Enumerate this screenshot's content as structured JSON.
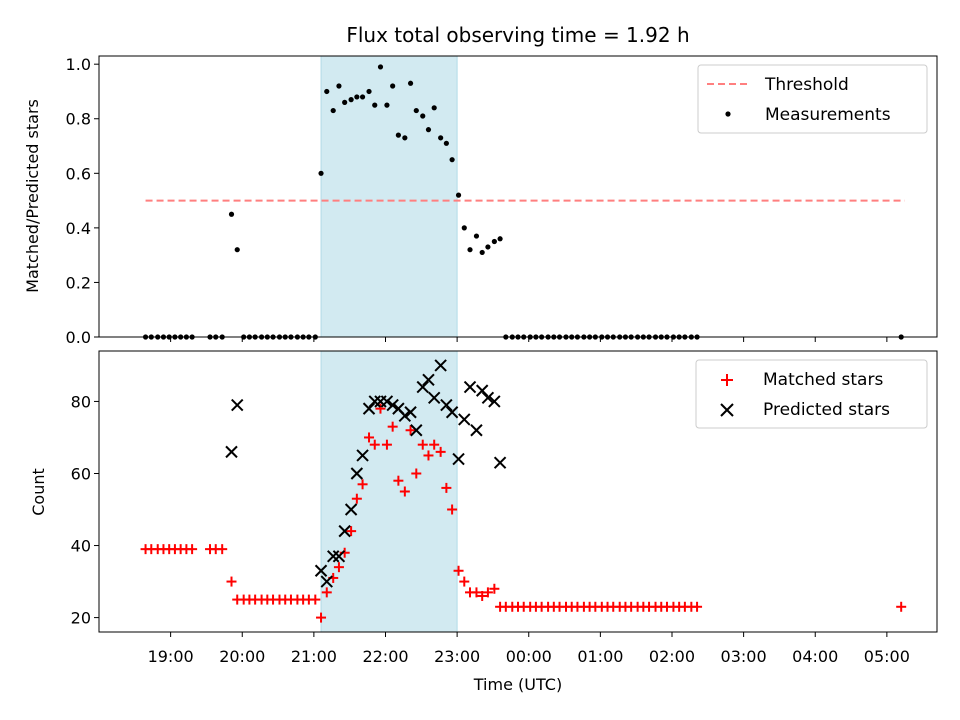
{
  "chart_data": [
    {
      "type": "scatter",
      "title": "Flux total observing time = 1.92 h",
      "ylabel": "Matched/Predicted stars",
      "ylim": [
        0,
        1.03
      ],
      "yticks": [
        "0.0",
        "0.2",
        "0.4",
        "0.6",
        "0.8",
        "1.0"
      ],
      "shaded_span": {
        "start": 21.1,
        "end": 23.0,
        "color": "#add8e6"
      },
      "threshold": {
        "name": "Threshold",
        "value": 0.5,
        "x_start": 18.65,
        "x_end": 29.25,
        "color": "#ff7f7f"
      },
      "series": [
        {
          "name": "Measurements",
          "color": "#000000",
          "x": [
            18.65,
            18.73,
            18.82,
            18.9,
            18.98,
            19.06,
            19.14,
            19.22,
            19.3,
            19.55,
            19.63,
            19.72,
            19.85,
            19.93,
            20.02,
            20.1,
            20.18,
            20.27,
            20.35,
            20.43,
            20.52,
            20.6,
            20.68,
            20.77,
            20.85,
            20.93,
            21.02,
            21.1,
            21.18,
            21.27,
            21.35,
            21.43,
            21.52,
            21.6,
            21.68,
            21.77,
            21.85,
            21.93,
            22.02,
            22.1,
            22.18,
            22.27,
            22.35,
            22.43,
            22.52,
            22.6,
            22.68,
            22.77,
            22.85,
            22.93,
            23.02,
            23.1,
            23.18,
            23.27,
            23.35,
            23.43,
            23.52,
            23.6,
            23.68,
            23.77,
            23.85,
            23.93,
            24.02,
            24.1,
            24.18,
            24.27,
            24.35,
            24.43,
            24.52,
            24.6,
            24.68,
            24.77,
            24.85,
            24.93,
            25.02,
            25.1,
            25.18,
            25.27,
            25.35,
            25.43,
            25.52,
            25.6,
            25.68,
            25.77,
            25.85,
            25.93,
            26.02,
            26.1,
            26.18,
            26.27,
            26.35,
            29.2
          ],
          "y": [
            0,
            0,
            0,
            0,
            0,
            0,
            0,
            0,
            0,
            0,
            0,
            0,
            0.45,
            0.32,
            0,
            0,
            0,
            0,
            0,
            0,
            0,
            0,
            0,
            0,
            0,
            0,
            0,
            0.6,
            0.9,
            0.83,
            0.92,
            0.86,
            0.87,
            0.88,
            0.88,
            0.9,
            0.85,
            0.99,
            0.85,
            0.92,
            0.74,
            0.73,
            0.93,
            0.83,
            0.81,
            0.76,
            0.84,
            0.73,
            0.71,
            0.65,
            0.52,
            0.4,
            0.32,
            0.37,
            0.31,
            0.33,
            0.35,
            0.36,
            0,
            0,
            0,
            0,
            0,
            0,
            0,
            0,
            0,
            0,
            0,
            0,
            0,
            0,
            0,
            0,
            0,
            0,
            0,
            0,
            0,
            0,
            0,
            0,
            0,
            0,
            0,
            0,
            0,
            0,
            0,
            0,
            0,
            0
          ]
        }
      ]
    },
    {
      "type": "scatter",
      "xlabel": "Time (UTC)",
      "ylabel": "Count",
      "ylim": [
        16,
        94
      ],
      "yticks": [
        "20",
        "40",
        "60",
        "80"
      ],
      "xticks": [
        "19:00",
        "20:00",
        "21:00",
        "22:00",
        "23:00",
        "00:00",
        "01:00",
        "02:00",
        "03:00",
        "04:00",
        "05:00"
      ],
      "shaded_span": {
        "start": 21.1,
        "end": 23.0,
        "color": "#add8e6"
      },
      "series": [
        {
          "name": "Matched stars",
          "color": "#ff0000",
          "x": [
            18.65,
            18.73,
            18.82,
            18.9,
            18.98,
            19.06,
            19.14,
            19.22,
            19.3,
            19.55,
            19.63,
            19.72,
            19.85,
            19.93,
            20.02,
            20.1,
            20.18,
            20.27,
            20.35,
            20.43,
            20.52,
            20.6,
            20.68,
            20.77,
            20.85,
            20.93,
            21.02,
            21.1,
            21.18,
            21.27,
            21.35,
            21.43,
            21.52,
            21.6,
            21.68,
            21.77,
            21.85,
            21.93,
            22.02,
            22.1,
            22.18,
            22.27,
            22.35,
            22.43,
            22.52,
            22.6,
            22.68,
            22.77,
            22.85,
            22.93,
            23.02,
            23.1,
            23.18,
            23.27,
            23.35,
            23.43,
            23.52,
            23.6,
            23.68,
            23.77,
            23.85,
            23.93,
            24.02,
            24.1,
            24.18,
            24.27,
            24.35,
            24.43,
            24.52,
            24.6,
            24.68,
            24.77,
            24.85,
            24.93,
            25.02,
            25.1,
            25.18,
            25.27,
            25.35,
            25.43,
            25.52,
            25.6,
            25.68,
            25.77,
            25.85,
            25.93,
            26.02,
            26.1,
            26.18,
            26.27,
            26.35,
            29.2
          ],
          "y": [
            39,
            39,
            39,
            39,
            39,
            39,
            39,
            39,
            39,
            39,
            39,
            39,
            30,
            25,
            25,
            25,
            25,
            25,
            25,
            25,
            25,
            25,
            25,
            25,
            25,
            25,
            25,
            20,
            27,
            31,
            34,
            38,
            44,
            53,
            57,
            70,
            68,
            78,
            68,
            73,
            58,
            55,
            72,
            60,
            68,
            65,
            68,
            66,
            56,
            50,
            33,
            30,
            27,
            27,
            26,
            27,
            28,
            23,
            23,
            23,
            23,
            23,
            23,
            23,
            23,
            23,
            23,
            23,
            23,
            23,
            23,
            23,
            23,
            23,
            23,
            23,
            23,
            23,
            23,
            23,
            23,
            23,
            23,
            23,
            23,
            23,
            23,
            23,
            23,
            23,
            23,
            23
          ]
        },
        {
          "name": "Predicted stars",
          "color": "#000000",
          "x": [
            19.85,
            19.93,
            21.1,
            21.18,
            21.27,
            21.35,
            21.43,
            21.52,
            21.6,
            21.68,
            21.77,
            21.85,
            21.93,
            22.02,
            22.1,
            22.18,
            22.27,
            22.35,
            22.43,
            22.52,
            22.6,
            22.68,
            22.77,
            22.85,
            22.93,
            23.02,
            23.1,
            23.18,
            23.27,
            23.35,
            23.43,
            23.52,
            23.6
          ],
          "y": [
            66,
            79,
            33,
            30,
            37,
            37,
            44,
            50,
            60,
            65,
            78,
            80,
            80,
            80,
            79,
            78,
            76,
            77,
            72,
            84,
            86,
            81,
            90,
            79,
            77,
            64,
            75,
            84,
            72,
            83,
            81,
            80,
            63
          ]
        }
      ]
    }
  ]
}
